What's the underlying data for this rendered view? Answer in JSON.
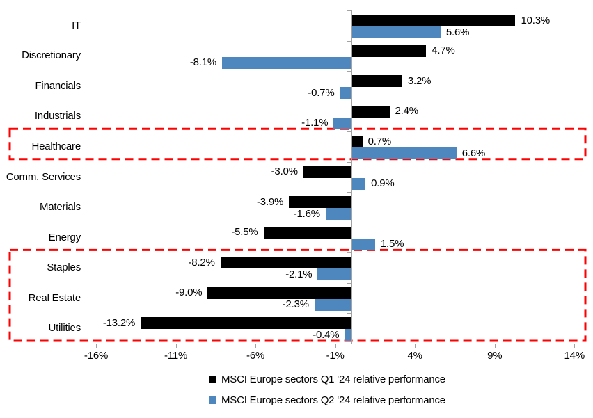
{
  "chart_data": {
    "type": "bar",
    "orientation": "horizontal",
    "title": "",
    "categories": [
      "IT",
      "Discretionary",
      "Financials",
      "Industrials",
      "Healthcare",
      "Comm. Services",
      "Materials",
      "Energy",
      "Staples",
      "Real Estate",
      "Utilities"
    ],
    "series": [
      {
        "name": "MSCI Europe sectors Q1 '24 relative performance",
        "color": "#000000",
        "values": [
          10.3,
          4.7,
          3.2,
          2.4,
          0.7,
          -3.0,
          -3.9,
          -5.5,
          -8.2,
          -9.0,
          -13.2
        ],
        "labels": [
          "10.3%",
          "4.7%",
          "3.2%",
          "2.4%",
          "0.7%",
          "-3.0%",
          "-3.9%",
          "-5.5%",
          "-8.2%",
          "-9.0%",
          "-13.2%"
        ]
      },
      {
        "name": "MSCI Europe sectors Q2 '24 relative performance",
        "color": "#4E86BE",
        "values": [
          5.6,
          -8.1,
          -0.7,
          -1.1,
          6.6,
          0.9,
          -1.6,
          1.5,
          -2.1,
          -2.3,
          -0.4
        ],
        "labels": [
          "5.6%",
          "-8.1%",
          "-0.7%",
          "-1.1%",
          "6.6%",
          "0.9%",
          "-1.6%",
          "1.5%",
          "-2.1%",
          "-2.3%",
          "-0.4%"
        ]
      }
    ],
    "x_ticks": [
      -16,
      -11,
      -6,
      -1,
      4,
      9,
      14
    ],
    "x_tick_labels": [
      "-16%",
      "-11%",
      "-6%",
      "-1%",
      "4%",
      "9%",
      "14%"
    ],
    "xlim": [
      -16.7,
      14.6
    ],
    "grid": false,
    "legend_position": "bottom",
    "axis_color": "#A3A3A3",
    "highlights": [
      {
        "categories": [
          "Healthcare"
        ],
        "color": "#FF0000"
      },
      {
        "categories": [
          "Staples",
          "Real Estate",
          "Utilities"
        ],
        "color": "#FF0000"
      }
    ]
  }
}
